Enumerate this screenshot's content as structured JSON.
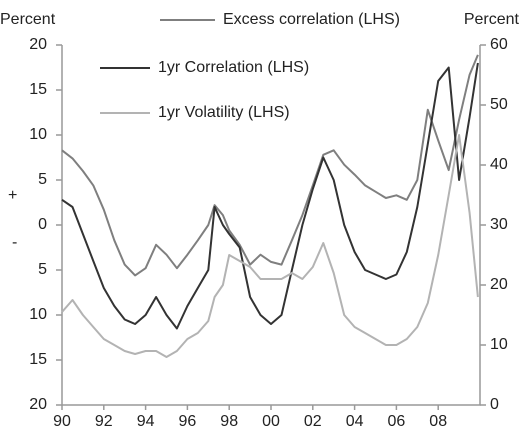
{
  "chart_data": {
    "type": "line",
    "y_label": "Percent",
    "y2_label": "Percent",
    "annotations": [
      "+",
      "-"
    ],
    "x": [
      1990,
      1990.5,
      1991,
      1991.5,
      1992,
      1992.5,
      1993,
      1993.5,
      1994,
      1994.5,
      1995,
      1995.5,
      1996,
      1996.5,
      1997,
      1997.3,
      1997.7,
      1998,
      1998.5,
      1999,
      1999.5,
      2000,
      2000.5,
      2001,
      2001.5,
      2002,
      2002.5,
      2003,
      2003.5,
      2004,
      2004.5,
      2005,
      2005.5,
      2006,
      2006.5,
      2007,
      2007.5,
      2008,
      2008.5,
      2009,
      2009.5,
      2009.9
    ],
    "series": [
      {
        "name": "Excess correlation (LHS)",
        "color": "#7f7f7f",
        "values": [
          8.3,
          7.4,
          6,
          4.4,
          1.7,
          -1.7,
          -4.4,
          -5.6,
          -4.8,
          -2.2,
          -3.3,
          -4.8,
          -3.3,
          -1.7,
          0,
          2.2,
          1.1,
          -0.6,
          -2.2,
          -4.4,
          -3.3,
          -4.1,
          -4.4,
          -1.7,
          1.1,
          4.4,
          7.8,
          8.3,
          6.7,
          5.6,
          4.4,
          3.7,
          3,
          3.3,
          2.8,
          5,
          12.8,
          9.4,
          6.1,
          11.7,
          16.7,
          18.9
        ]
      },
      {
        "name": "1yr Correlation (LHS)",
        "color": "#333333",
        "values": [
          2.8,
          2,
          -1,
          -4,
          -7,
          -9,
          -10.5,
          -11,
          -10,
          -8,
          -10,
          -11.5,
          -9,
          -7,
          -5,
          2,
          0,
          -1,
          -2.5,
          -8,
          -10,
          -11,
          -10,
          -5,
          0,
          4,
          7.5,
          5,
          0,
          -3,
          -5,
          -5.5,
          -6,
          -5.5,
          -3,
          2,
          9,
          16,
          17.5,
          5,
          12,
          18
        ]
      },
      {
        "name": "1yr Volatility (LHS)",
        "color": "#b3b3b3",
        "axis": "y2",
        "values": [
          15.5,
          17.5,
          15,
          13,
          11,
          10,
          9,
          8.5,
          9,
          9,
          8,
          9,
          11,
          12,
          14,
          18,
          20,
          25,
          24,
          23,
          21,
          21,
          21,
          22,
          21,
          23,
          27,
          22,
          15,
          13,
          12,
          11,
          10,
          10,
          11,
          13,
          17,
          25,
          35,
          45,
          32,
          18
        ]
      }
    ],
    "xlim": [
      1990,
      2010
    ],
    "xticks": [
      {
        "value": 1990,
        "label": "90"
      },
      {
        "value": 1992,
        "label": "92"
      },
      {
        "value": 1994,
        "label": "94"
      },
      {
        "value": 1996,
        "label": "96"
      },
      {
        "value": 1998,
        "label": "98"
      },
      {
        "value": 2000,
        "label": "00"
      },
      {
        "value": 2002,
        "label": "02"
      },
      {
        "value": 2004,
        "label": "04"
      },
      {
        "value": 2006,
        "label": "06"
      },
      {
        "value": 2008,
        "label": "08"
      }
    ],
    "ylim": [
      -20,
      20
    ],
    "yticks": [
      20,
      15,
      10,
      5,
      0,
      {
        "value": -5,
        "label": "5"
      },
      {
        "value": -10,
        "label": "10"
      },
      {
        "value": -15,
        "label": "15"
      },
      {
        "value": -20,
        "label": "20"
      }
    ],
    "y2lim": [
      0,
      60
    ],
    "y2ticks": [
      0,
      10,
      20,
      30,
      40,
      50,
      60
    ]
  }
}
